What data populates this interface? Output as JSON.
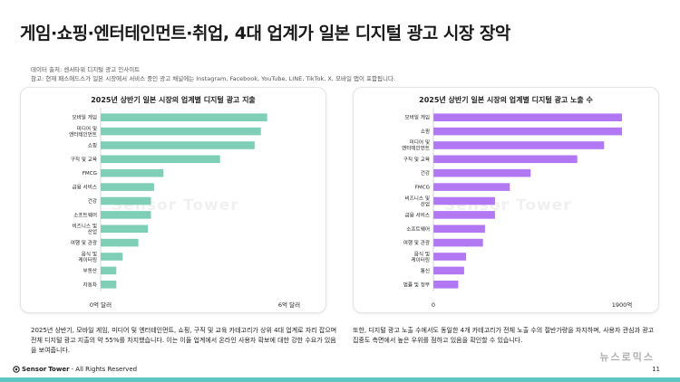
{
  "page": {
    "title": "게임·쇼핑·엔터테인먼트·취업, 4대 업계가 일본 디지털 광고 시장 장악",
    "source_note": "데이터 출처: 센서타워 디지털 광고 인사이트",
    "ref_note": "참고: 현재 패스애드스가 일본 시장에서 서비스 중인 광고 채널에는 Instagram, Facebook, YouTube, LINE, TikTok, X, 모바일 앱이 포함됩니다.",
    "left_description": "2025년 상반기, 모바일 게임, 미디어 및 엔터테인먼트, 쇼핑, 구직 및 교육 카테고리가 상위 4대 업계로 자리 잡으며 전체 디지털 광고 지출의 약 55%를 차지했습니다. 이는 이들 업계에서 온라인 사용자 확보에 대한 강한 수요가 있음을 보여줍니다.",
    "right_description": "또한, 디지털 광고 노출 수에서도 동일한 4개 카테고리가 전체 노출 수의 절반가량을 차지하며, 사용자 관심과 광고 집중도 측면에서 높은 우위를 점하고 있음을 확인할 수 있습니다.",
    "footer_brand_a": "Sensor",
    "footer_brand_b": "Tower",
    "footer_rights": " - All Rights Reserved",
    "page_number": "11",
    "watermark_text": "Sensor Tower",
    "news_mark": "뉴스로믹스"
  },
  "colors": {
    "teal": "#7fcfb7",
    "purple": "#b277f2",
    "footer_band": "#5cc7c1"
  },
  "chart_data": [
    {
      "type": "bar",
      "orientation": "horizontal",
      "title": "2025년 상반기 일본 시장의 업계별 디지털 광고 지출",
      "categories": [
        "모바일 게임",
        "미디어 및 엔터테인먼트",
        "쇼핑",
        "구직 및 교육",
        "FMCG",
        "금융 서비스",
        "건강",
        "소프트웨어",
        "비즈니스 및 산업",
        "여행 및 관광",
        "음식 및 케이터링",
        "부동산",
        "자동차"
      ],
      "values": [
        5.3,
        5.1,
        4.9,
        3.8,
        2.0,
        1.7,
        1.6,
        1.6,
        1.5,
        1.2,
        0.7,
        0.5,
        0.5
      ],
      "xlim": [
        0,
        6
      ],
      "tick_labels": [
        "0억 달러",
        "6억 달러"
      ],
      "color": "#7fcfb7"
    },
    {
      "type": "bar",
      "orientation": "horizontal",
      "title": "2025년 상반기 일본 시장의 업계별 디지털 광고 노출 수",
      "categories": [
        "모바일 게임",
        "쇼핑",
        "미디어 및 엔터테인먼트",
        "구직 및 교육",
        "건강",
        "FMCG",
        "비즈니스 및 산업",
        "금융 서비스",
        "소프트웨어",
        "여행 및 관광",
        "음식 및 케이터링",
        "통신",
        "법률 및 정부"
      ],
      "values": [
        1900,
        1900,
        1720,
        1450,
        980,
        770,
        620,
        620,
        520,
        500,
        330,
        310,
        250
      ],
      "xlim": [
        0,
        1900
      ],
      "tick_labels": [
        "0",
        "1900억"
      ],
      "color": "#b277f2"
    }
  ]
}
